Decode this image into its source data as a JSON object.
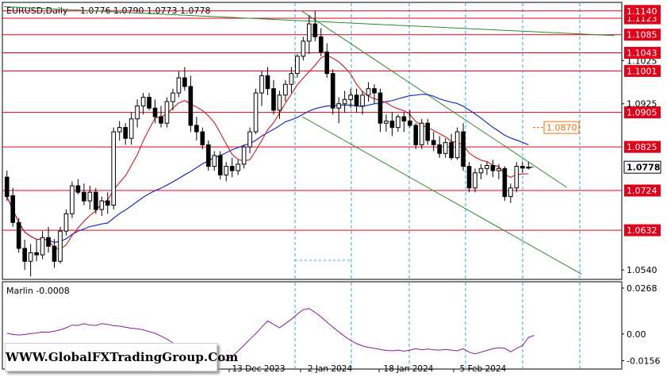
{
  "header": {
    "symbol": "EURUSD,Daily",
    "ohlc": "1.0776 1.0790 1.0773 1.0778"
  },
  "watermark": "WWW.GlobalFXTradingGroup.Com",
  "chart_data": [
    {
      "type": "candlestick",
      "title": "EURUSD,Daily",
      "ylim": [
        1.052,
        1.1158
      ],
      "y_ticks": [
        "1.0540",
        "1.0632",
        "1.0724",
        "1.0778",
        "1.0825",
        "1.0870",
        "1.0905",
        "1.0925",
        "1.1001",
        "1.1025",
        "1.1043",
        "1.1085",
        "1.1123",
        "1.1140"
      ],
      "x_labels": [
        "13 Dec 2023",
        "2 Jan 2024",
        "18 Jan 2024",
        "5 Feb 2024"
      ],
      "horizontal_levels": [
        1.114,
        1.1123,
        1.1085,
        1.1043,
        1.1001,
        1.0905,
        1.0825,
        1.0724,
        1.0632
      ],
      "marked_level": {
        "label": "1.0870",
        "value": 1.087,
        "color": "#ff6a00"
      },
      "current_price": {
        "label": "1.0778",
        "value": 1.0778
      },
      "level_color": "#e0001a",
      "trendline_color": "#2e8b2e",
      "ma_fast_color": "#d11a1a",
      "ma_slow_color": "#1a2fcc",
      "grid": false,
      "candles": [
        [
          1.0755,
          1.077,
          1.07,
          1.071
        ],
        [
          1.0712,
          1.073,
          1.064,
          1.065
        ],
        [
          1.065,
          1.066,
          1.058,
          1.059
        ],
        [
          1.059,
          1.061,
          1.054,
          1.056
        ],
        [
          1.056,
          1.06,
          1.0525,
          1.058
        ],
        [
          1.058,
          1.061,
          1.056,
          1.0575
        ],
        [
          1.0575,
          1.063,
          1.0565,
          1.0615
        ],
        [
          1.0615,
          1.064,
          1.058,
          1.0595
        ],
        [
          1.0595,
          1.0612,
          1.0545,
          1.056
        ],
        [
          1.056,
          1.064,
          1.0555,
          1.063
        ],
        [
          1.063,
          1.068,
          1.062,
          1.067
        ],
        [
          1.067,
          1.0745,
          1.066,
          1.0735
        ],
        [
          1.0735,
          1.075,
          1.0715,
          1.072
        ],
        [
          1.072,
          1.074,
          1.069,
          1.07
        ],
        [
          1.07,
          1.0735,
          1.068,
          1.072
        ],
        [
          1.072,
          1.073,
          1.067,
          1.068
        ],
        [
          1.068,
          1.071,
          1.0665,
          1.07
        ],
        [
          1.07,
          1.072,
          1.067,
          1.069
        ],
        [
          1.069,
          1.087,
          1.068,
          1.086
        ],
        [
          1.086,
          1.0885,
          1.084,
          1.087
        ],
        [
          1.087,
          1.088,
          1.083,
          1.0845
        ],
        [
          1.0845,
          1.0905,
          1.083,
          1.089
        ],
        [
          1.089,
          1.0935,
          1.087,
          1.092
        ],
        [
          1.092,
          1.095,
          1.09,
          1.094
        ],
        [
          1.094,
          1.095,
          1.091,
          1.0915
        ],
        [
          1.0915,
          1.0935,
          1.088,
          1.0895
        ],
        [
          1.0895,
          1.092,
          1.087,
          1.088
        ],
        [
          1.088,
          1.094,
          1.087,
          1.093
        ],
        [
          1.093,
          1.096,
          1.091,
          1.095
        ],
        [
          1.095,
          1.1,
          1.094,
          1.0985
        ],
        [
          1.0985,
          1.101,
          1.0955,
          1.0965
        ],
        [
          1.0965,
          1.099,
          1.086,
          1.0875
        ],
        [
          1.0875,
          1.0895,
          1.084,
          1.086
        ],
        [
          1.086,
          1.087,
          1.082,
          1.083
        ],
        [
          1.083,
          1.084,
          1.077,
          1.078
        ],
        [
          1.078,
          1.0815,
          1.077,
          1.0805
        ],
        [
          1.0805,
          1.0815,
          1.075,
          1.076
        ],
        [
          1.076,
          1.079,
          1.0745,
          1.078
        ],
        [
          1.078,
          1.08,
          1.0755,
          1.077
        ],
        [
          1.077,
          1.0795,
          1.076,
          1.0785
        ],
        [
          1.0785,
          1.083,
          1.0775,
          1.0825
        ],
        [
          1.0825,
          1.087,
          1.081,
          1.086
        ],
        [
          1.086,
          1.096,
          1.0855,
          1.095
        ],
        [
          1.095,
          1.1,
          1.092,
          1.099
        ],
        [
          1.099,
          1.101,
          1.0945,
          1.096
        ],
        [
          1.096,
          1.098,
          1.09,
          1.091
        ],
        [
          1.091,
          1.0955,
          1.089,
          1.0945
        ],
        [
          1.0945,
          1.098,
          1.093,
          1.097
        ],
        [
          1.097,
          1.101,
          1.095,
          1.0995
        ],
        [
          1.0995,
          1.104,
          1.0985,
          1.1035
        ],
        [
          1.1035,
          1.108,
          1.1025,
          1.107
        ],
        [
          1.107,
          1.113,
          1.104,
          1.111
        ],
        [
          1.111,
          1.114,
          1.107,
          1.108
        ],
        [
          1.108,
          1.11,
          1.1035,
          1.1045
        ],
        [
          1.1045,
          1.1065,
          1.0985,
          1.0995
        ],
        [
          1.0995,
          1.1005,
          1.09,
          1.0915
        ],
        [
          1.0915,
          1.094,
          1.088,
          1.0925
        ],
        [
          1.0925,
          1.0955,
          1.0905,
          1.0935
        ],
        [
          1.0935,
          1.096,
          1.0915,
          1.0945
        ],
        [
          1.0945,
          1.096,
          1.0905,
          1.092
        ],
        [
          1.092,
          1.0955,
          1.09,
          1.0945
        ],
        [
          1.0945,
          1.0975,
          1.093,
          1.096
        ],
        [
          1.096,
          1.097,
          1.0925,
          1.095
        ],
        [
          1.095,
          1.096,
          1.086,
          1.088
        ],
        [
          1.088,
          1.09,
          1.086,
          1.0885
        ],
        [
          1.0885,
          1.0905,
          1.085,
          1.087
        ],
        [
          1.087,
          1.09,
          1.086,
          1.0895
        ],
        [
          1.0895,
          1.0905,
          1.086,
          1.0885
        ],
        [
          1.0885,
          1.091,
          1.087,
          1.0875
        ],
        [
          1.0875,
          1.088,
          1.082,
          1.083
        ],
        [
          1.083,
          1.089,
          1.082,
          1.088
        ],
        [
          1.088,
          1.089,
          1.083,
          1.084
        ],
        [
          1.084,
          1.086,
          1.0815,
          1.083
        ],
        [
          1.083,
          1.085,
          1.08,
          1.081
        ],
        [
          1.081,
          1.0845,
          1.08,
          1.0835
        ],
        [
          1.0835,
          1.0855,
          1.0795,
          1.08
        ],
        [
          1.08,
          1.087,
          1.0795,
          1.086
        ],
        [
          1.086,
          1.088,
          1.077,
          1.078
        ],
        [
          1.078,
          1.079,
          1.072,
          1.073
        ],
        [
          1.073,
          1.0775,
          1.072,
          1.0765
        ],
        [
          1.0765,
          1.0785,
          1.075,
          1.0775
        ],
        [
          1.0775,
          1.079,
          1.076,
          1.0782
        ],
        [
          1.0782,
          1.0795,
          1.0755,
          1.077
        ],
        [
          1.077,
          1.0785,
          1.075,
          1.0775
        ],
        [
          1.0775,
          1.078,
          1.07,
          1.071
        ],
        [
          1.071,
          1.074,
          1.0695,
          1.073
        ],
        [
          1.073,
          1.079,
          1.072,
          1.078
        ],
        [
          1.078,
          1.079,
          1.0765,
          1.0776
        ],
        [
          1.0776,
          1.079,
          1.0773,
          1.0778
        ]
      ]
    },
    {
      "type": "line",
      "title": "Marlin -0.0008",
      "ylim": [
        -0.02,
        0.03
      ],
      "y_ticks": [
        "0.0268",
        "0.00",
        "-0.0156"
      ],
      "series": [
        {
          "color": "#8a1a9e",
          "values": [
            0.0004,
            -0.0003,
            -0.0006,
            -0.0003,
            0.0002,
            0.0006,
            0.0012,
            0.001,
            0.0016,
            0.0024,
            0.0036,
            0.0052,
            0.005,
            0.006,
            0.0052,
            0.005,
            0.006,
            0.0056,
            0.0048,
            0.0046,
            0.004,
            0.0034,
            0.003,
            0.0024,
            0.0014,
            0.0004,
            -0.0012,
            -0.003,
            -0.0052,
            -0.0074,
            -0.009,
            -0.0106,
            -0.012,
            -0.0134,
            -0.0146,
            -0.0152,
            -0.0156,
            -0.015,
            -0.013,
            -0.01,
            -0.0066,
            -0.003,
            0.0002,
            0.004,
            0.0076,
            0.0056,
            0.0036,
            0.006,
            0.0086,
            0.0116,
            0.0142,
            0.0148,
            0.0126,
            0.01,
            0.007,
            0.004,
            0.0012,
            -0.0014,
            -0.0038,
            -0.0056,
            -0.007,
            -0.0078,
            -0.0084,
            -0.009,
            -0.0096,
            -0.0098,
            -0.0094,
            -0.01,
            -0.0094,
            -0.0086,
            -0.0092,
            -0.0088,
            -0.0092,
            -0.0094,
            -0.009,
            -0.0094,
            -0.0098,
            -0.0086,
            -0.0106,
            -0.0116,
            -0.0106,
            -0.0096,
            -0.0086,
            -0.008,
            -0.0084,
            -0.0104,
            -0.0084,
            -0.0068,
            -0.002,
            -0.0008
          ]
        }
      ]
    }
  ]
}
